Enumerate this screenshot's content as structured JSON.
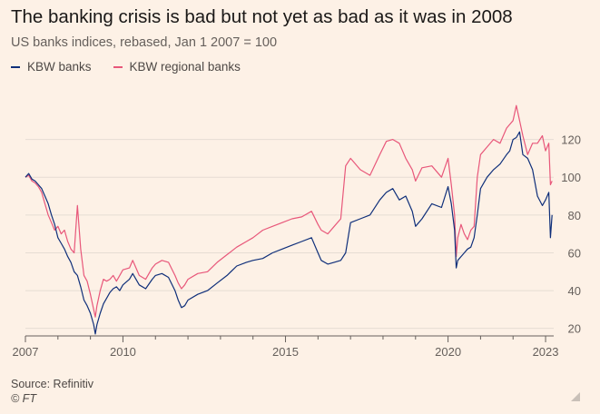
{
  "title": "The banking crisis is bad but not yet as bad as it was in 2008",
  "subtitle": "US banks indices, rebased, Jan 1 2007 = 100",
  "source": "Source: Refinitiv",
  "copyright": "© FT",
  "colors": {
    "background": "#fdf1e6",
    "kbw_banks": "#0f2f7a",
    "kbw_regional": "#e8577a",
    "grid": "#e6dcd3"
  },
  "chart_data": {
    "type": "line",
    "title": "The banking crisis is bad but not yet as bad as it was in 2008",
    "subtitle": "US banks indices, rebased, Jan 1 2007 = 100",
    "xlabel": "",
    "ylabel": "",
    "x_ticks": [
      "2007",
      "2010",
      "2015",
      "2020",
      "2023"
    ],
    "y_ticks": [
      20,
      40,
      60,
      80,
      100,
      120
    ],
    "xlim": [
      2007.0,
      2023.25
    ],
    "ylim": [
      16,
      140
    ],
    "grid": true,
    "legend_position": "top-left",
    "series": [
      {
        "name": "KBW banks",
        "color": "#0f2f7a",
        "x": [
          2007.0,
          2007.1,
          2007.2,
          2007.3,
          2007.4,
          2007.5,
          2007.6,
          2007.7,
          2007.8,
          2007.9,
          2008.0,
          2008.1,
          2008.2,
          2008.3,
          2008.4,
          2008.5,
          2008.6,
          2008.7,
          2008.8,
          2008.9,
          2009.0,
          2009.1,
          2009.15,
          2009.2,
          2009.3,
          2009.4,
          2009.5,
          2009.6,
          2009.7,
          2009.8,
          2009.9,
          2010.0,
          2010.2,
          2010.3,
          2010.5,
          2010.7,
          2010.9,
          2011.0,
          2011.2,
          2011.4,
          2011.6,
          2011.7,
          2011.8,
          2011.9,
          2012.0,
          2012.3,
          2012.6,
          2012.9,
          2013.2,
          2013.5,
          2013.8,
          2014.0,
          2014.3,
          2014.6,
          2014.9,
          2015.2,
          2015.5,
          2015.8,
          2016.0,
          2016.1,
          2016.3,
          2016.5,
          2016.7,
          2016.85,
          2017.0,
          2017.3,
          2017.6,
          2017.9,
          2018.1,
          2018.3,
          2018.5,
          2018.7,
          2018.9,
          2019.0,
          2019.2,
          2019.5,
          2019.8,
          2020.0,
          2020.1,
          2020.2,
          2020.25,
          2020.3,
          2020.4,
          2020.5,
          2020.6,
          2020.7,
          2020.8,
          2020.9,
          2021.0,
          2021.2,
          2021.4,
          2021.6,
          2021.8,
          2021.9,
          2022.0,
          2022.1,
          2022.2,
          2022.3,
          2022.45,
          2022.6,
          2022.75,
          2022.9,
          2023.0,
          2023.1,
          2023.15,
          2023.2
        ],
        "values": [
          100,
          102,
          99,
          98,
          96,
          94,
          90,
          86,
          80,
          75,
          68,
          65,
          62,
          58,
          55,
          50,
          48,
          42,
          35,
          32,
          28,
          22,
          17,
          22,
          28,
          33,
          36,
          39,
          41,
          42,
          40,
          43,
          46,
          49,
          43,
          41,
          46,
          48,
          49,
          47,
          40,
          35,
          31,
          32,
          35,
          38,
          40,
          44,
          48,
          53,
          55,
          56,
          57,
          60,
          62,
          64,
          66,
          68,
          60,
          56,
          54,
          55,
          56,
          60,
          76,
          78,
          80,
          88,
          92,
          94,
          88,
          90,
          82,
          74,
          78,
          86,
          84,
          95,
          86,
          72,
          52,
          56,
          58,
          60,
          62,
          63,
          68,
          80,
          94,
          100,
          104,
          107,
          112,
          114,
          120,
          121,
          124,
          112,
          110,
          104,
          90,
          85,
          88,
          92,
          68,
          80
        ]
      },
      {
        "name": "KBW regional banks",
        "color": "#e8577a",
        "x": [
          2007.0,
          2007.1,
          2007.2,
          2007.3,
          2007.4,
          2007.5,
          2007.6,
          2007.7,
          2007.8,
          2007.9,
          2008.0,
          2008.1,
          2008.2,
          2008.3,
          2008.4,
          2008.5,
          2008.6,
          2008.7,
          2008.8,
          2008.9,
          2009.0,
          2009.1,
          2009.15,
          2009.2,
          2009.3,
          2009.4,
          2009.5,
          2009.6,
          2009.7,
          2009.8,
          2009.9,
          2010.0,
          2010.2,
          2010.3,
          2010.5,
          2010.7,
          2010.9,
          2011.0,
          2011.2,
          2011.4,
          2011.6,
          2011.7,
          2011.8,
          2011.9,
          2012.0,
          2012.3,
          2012.6,
          2012.9,
          2013.2,
          2013.5,
          2013.8,
          2014.0,
          2014.3,
          2014.6,
          2014.9,
          2015.2,
          2015.5,
          2015.8,
          2016.0,
          2016.1,
          2016.3,
          2016.5,
          2016.7,
          2016.85,
          2017.0,
          2017.3,
          2017.6,
          2017.9,
          2018.1,
          2018.3,
          2018.5,
          2018.7,
          2018.9,
          2019.0,
          2019.2,
          2019.5,
          2019.8,
          2020.0,
          2020.1,
          2020.2,
          2020.25,
          2020.3,
          2020.4,
          2020.5,
          2020.6,
          2020.7,
          2020.8,
          2020.9,
          2021.0,
          2021.2,
          2021.4,
          2021.6,
          2021.8,
          2021.9,
          2022.0,
          2022.1,
          2022.2,
          2022.3,
          2022.45,
          2022.6,
          2022.75,
          2022.9,
          2023.0,
          2023.1,
          2023.15,
          2023.2
        ],
        "values": [
          100,
          101,
          98,
          97,
          95,
          92,
          86,
          80,
          76,
          72,
          74,
          70,
          72,
          66,
          62,
          60,
          85,
          62,
          48,
          45,
          38,
          30,
          26,
          32,
          40,
          46,
          45,
          46,
          48,
          45,
          48,
          51,
          52,
          56,
          48,
          46,
          52,
          54,
          56,
          55,
          48,
          44,
          41,
          43,
          46,
          49,
          50,
          55,
          59,
          63,
          66,
          68,
          72,
          74,
          76,
          78,
          79,
          82,
          75,
          72,
          70,
          74,
          78,
          106,
          110,
          104,
          101,
          112,
          119,
          120,
          118,
          110,
          104,
          98,
          105,
          106,
          100,
          110,
          96,
          80,
          58,
          68,
          75,
          70,
          67,
          72,
          74,
          100,
          112,
          116,
          120,
          118,
          126,
          128,
          130,
          138,
          130,
          122,
          112,
          118,
          118,
          122,
          114,
          118,
          96,
          98
        ]
      }
    ]
  }
}
